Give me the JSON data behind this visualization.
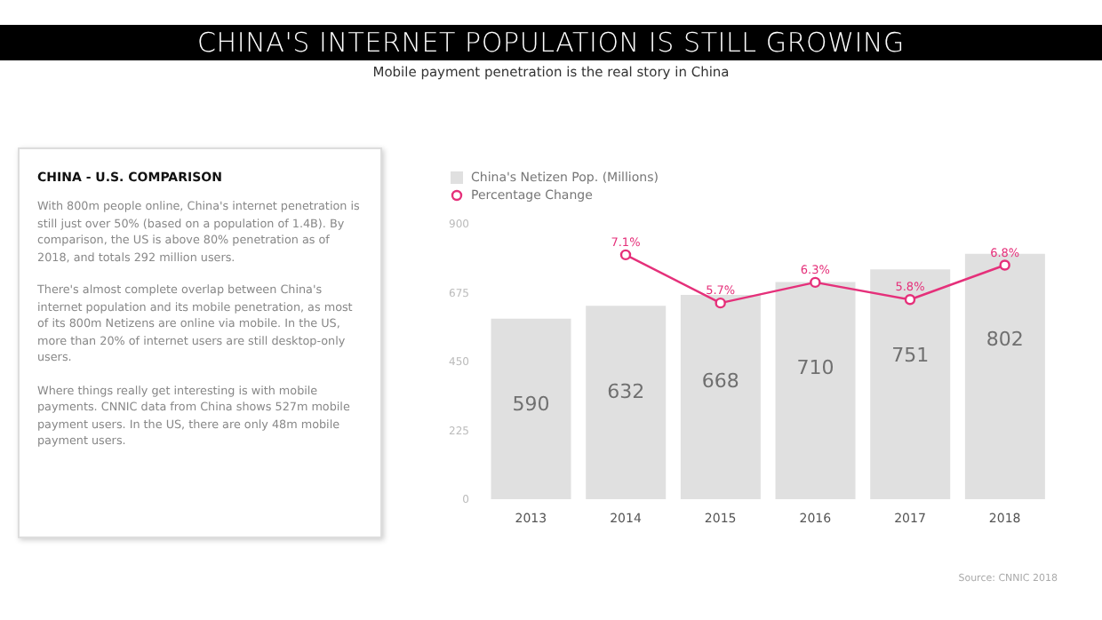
{
  "chart_data": [
    {
      "type": "other",
      "title": "CHINA - U.S. COMPARISON",
      "annotations": [
        "With 800m people online, China's internet penetration is still just over 50% (based on a population of 1.4B). By comparison, the US is above 80% penetration as of 2018, and totals 292 million users.",
        "There's almost complete overlap between China's internet population and its mobile penetration, as most of its 800m Netizens are online via mobile. In the US, more than 20% of internet users are still desktop-only users.",
        "Where things really get interesting is with mobile payments. CNNIC data from China shows 527m mobile payment users. In the US, there are only 48m mobile payment users."
      ]
    },
    {
      "type": "bar",
      "title": "CHINA'S INTERNET POPULATION IS STILL GROWING",
      "subtitle": "Mobile payment penetration is the real story in China",
      "categories": [
        "2013",
        "2014",
        "2015",
        "2016",
        "2017",
        "2018"
      ],
      "series": [
        {
          "type": "bar",
          "name": "China's Netizen Pop. (Millions)",
          "color": "#e0e0e0",
          "values": [
            590,
            632,
            668,
            710,
            751,
            802
          ],
          "data_labels": true
        },
        {
          "type": "line",
          "name": "Percentage Change",
          "color": "#e5307a",
          "axis": "y2",
          "marker": "circle",
          "values": [
            null,
            7.1,
            5.7,
            6.3,
            5.8,
            6.8
          ],
          "value_labels": [
            null,
            "7.1%",
            "5.7%",
            "6.3%",
            "5.8%",
            "6.8%"
          ]
        }
      ],
      "ylim": [
        0,
        900
      ],
      "yticks": [
        0,
        225,
        450,
        675,
        900
      ],
      "legend": "top left",
      "annotations": [
        "Source: CNNIC 2018"
      ]
    }
  ]
}
